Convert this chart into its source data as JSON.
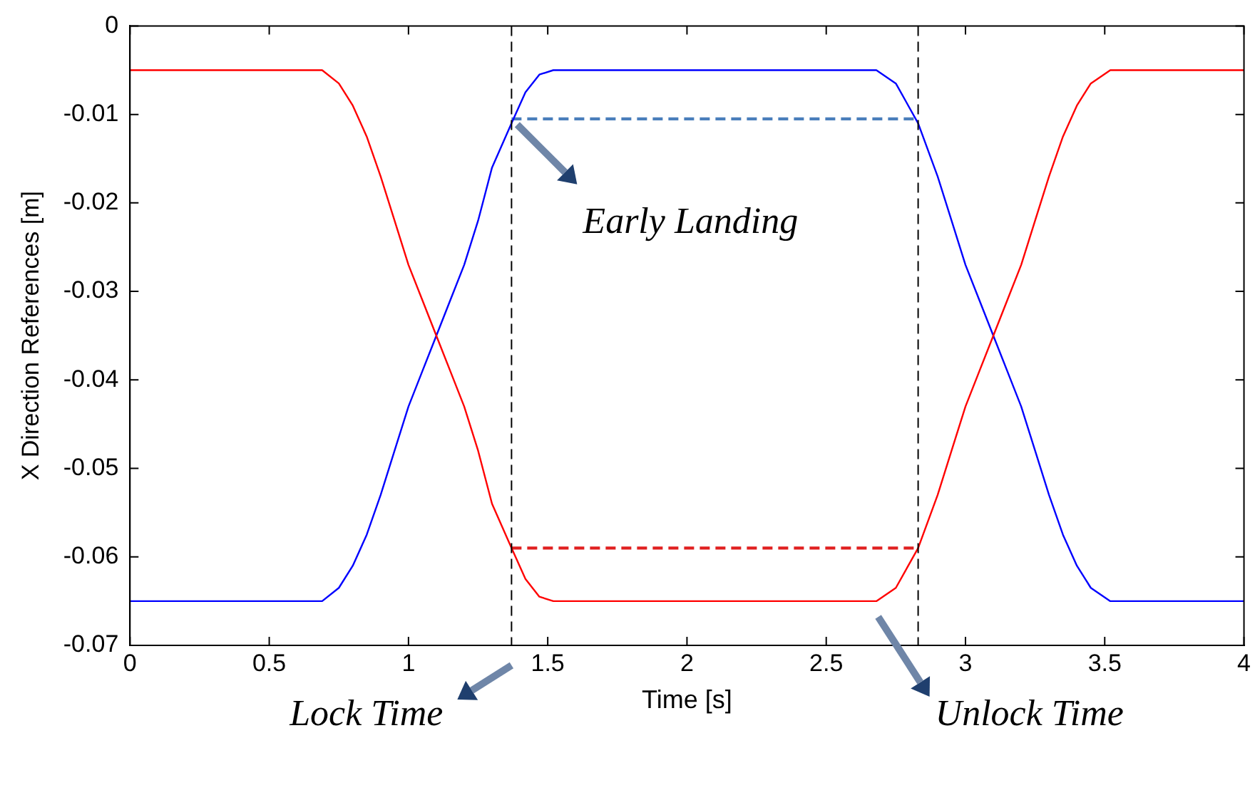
{
  "chart_data": {
    "type": "line",
    "xlabel": "Time [s]",
    "ylabel": "X Direction References [m]",
    "xlim": [
      0,
      4
    ],
    "xticks": [
      0,
      0.5,
      1,
      1.5,
      2,
      2.5,
      3,
      3.5,
      4
    ],
    "ylim": [
      -0.07,
      0
    ],
    "yticks": [
      -0.07,
      -0.06,
      -0.05,
      -0.04,
      -0.03,
      -0.02,
      -0.01,
      0
    ],
    "grid": false,
    "legend": false,
    "marker": "none",
    "series": [
      {
        "color": "#ff0000",
        "x": [
          0,
          0.69,
          0.75,
          0.8,
          0.85,
          0.9,
          0.95,
          1.0,
          1.05,
          1.1,
          1.15,
          1.2,
          1.25,
          1.3,
          1.37,
          1.42,
          1.47,
          1.52,
          2.68,
          2.75,
          2.83,
          2.9,
          2.95,
          3.0,
          3.05,
          3.1,
          3.15,
          3.2,
          3.25,
          3.3,
          3.35,
          3.4,
          3.45,
          3.52,
          4
        ],
        "values": [
          -0.005,
          -0.005,
          -0.0065,
          -0.009,
          -0.0125,
          -0.017,
          -0.022,
          -0.027,
          -0.031,
          -0.035,
          -0.039,
          -0.043,
          -0.048,
          -0.054,
          -0.059,
          -0.0625,
          -0.0645,
          -0.065,
          -0.065,
          -0.0635,
          -0.059,
          -0.053,
          -0.048,
          -0.043,
          -0.039,
          -0.035,
          -0.031,
          -0.027,
          -0.022,
          -0.017,
          -0.0125,
          -0.009,
          -0.0065,
          -0.005,
          -0.005
        ]
      },
      {
        "color": "#0000ff",
        "x": [
          0,
          0.69,
          0.75,
          0.8,
          0.85,
          0.9,
          0.95,
          1.0,
          1.05,
          1.1,
          1.15,
          1.2,
          1.25,
          1.3,
          1.37,
          1.42,
          1.47,
          1.52,
          2.68,
          2.75,
          2.83,
          2.9,
          2.95,
          3.0,
          3.05,
          3.1,
          3.15,
          3.2,
          3.25,
          3.3,
          3.35,
          3.4,
          3.45,
          3.52,
          4
        ],
        "values": [
          -0.065,
          -0.065,
          -0.0635,
          -0.061,
          -0.0575,
          -0.053,
          -0.048,
          -0.043,
          -0.039,
          -0.035,
          -0.031,
          -0.027,
          -0.022,
          -0.016,
          -0.011,
          -0.0075,
          -0.0055,
          -0.005,
          -0.005,
          -0.0065,
          -0.011,
          -0.017,
          -0.022,
          -0.027,
          -0.031,
          -0.035,
          -0.039,
          -0.043,
          -0.048,
          -0.053,
          -0.0575,
          -0.061,
          -0.0635,
          -0.065,
          -0.065
        ]
      },
      {
        "color": "#4a7ebb",
        "line_style": "dashed",
        "x": [
          1.37,
          2.83
        ],
        "values": [
          -0.0105,
          -0.0105
        ]
      },
      {
        "color": "#e02020",
        "line_style": "dashed",
        "x": [
          1.37,
          2.83
        ],
        "values": [
          -0.059,
          -0.059
        ]
      }
    ],
    "ref_lines": [
      {
        "axis": "x",
        "value": 1.37,
        "color": "#000000",
        "line_style": "dashed"
      },
      {
        "axis": "x",
        "value": 2.83,
        "color": "#000000",
        "line_style": "dashed"
      }
    ],
    "annotations": [
      {
        "text": "Early Landing",
        "x": 1.37,
        "y": -0.0105
      },
      "Lock Time",
      "Unlock Time"
    ]
  }
}
